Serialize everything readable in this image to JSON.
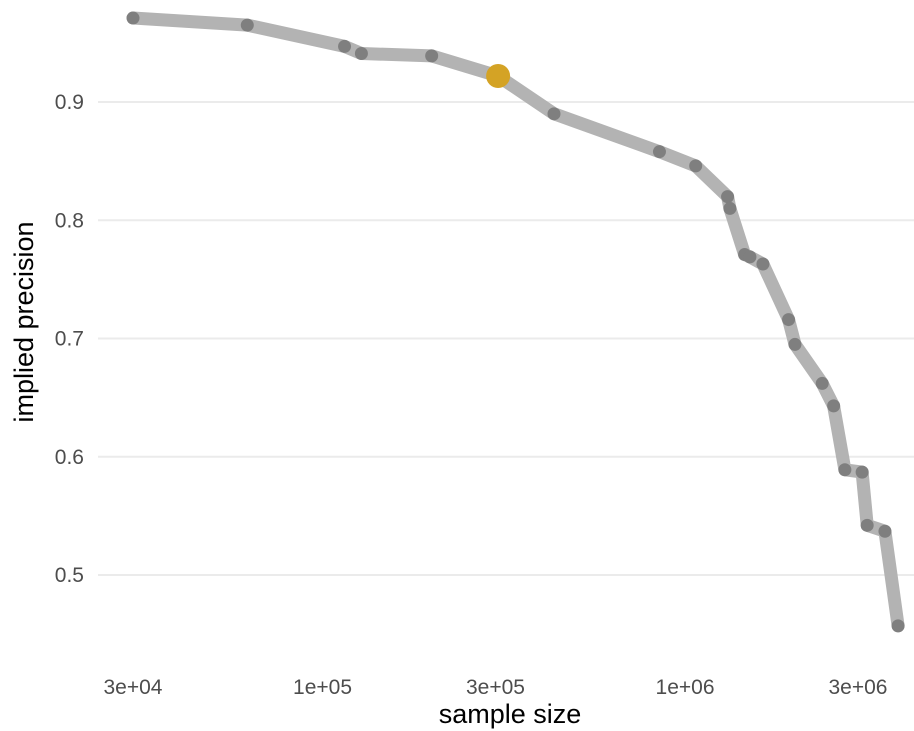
{
  "chart_data": {
    "type": "line",
    "xlabel": "sample size",
    "ylabel": "implied precision",
    "x_scale": "log10",
    "xlim": [
      25000,
      3500000
    ],
    "ylim": [
      0.44,
      0.98
    ],
    "x_ticks": [
      {
        "value": 30000,
        "label": "3e+04"
      },
      {
        "value": 100000,
        "label": "1e+05"
      },
      {
        "value": 300000,
        "label": "3e+05"
      },
      {
        "value": 1000000,
        "label": "1e+06"
      },
      {
        "value": 3000000,
        "label": "3e+06"
      }
    ],
    "y_ticks": [
      {
        "value": 0.5,
        "label": "0.5"
      },
      {
        "value": 0.6,
        "label": "0.6"
      },
      {
        "value": 0.7,
        "label": "0.7"
      },
      {
        "value": 0.8,
        "label": "0.8"
      },
      {
        "value": 0.9,
        "label": "0.9"
      }
    ],
    "grid": true,
    "legend": "none",
    "colors": {
      "line": "#b3b3b3",
      "point": "#7f7f7f",
      "highlight": "#d4a325"
    },
    "series": [
      {
        "points": [
          {
            "x": 30000,
            "y": 0.971
          },
          {
            "x": 62000,
            "y": 0.965
          },
          {
            "x": 115000,
            "y": 0.947
          },
          {
            "x": 128000,
            "y": 0.941
          },
          {
            "x": 200000,
            "y": 0.939
          },
          {
            "x": 305000,
            "y": 0.922
          },
          {
            "x": 435000,
            "y": 0.89
          },
          {
            "x": 850000,
            "y": 0.858
          },
          {
            "x": 1070000,
            "y": 0.846
          },
          {
            "x": 1310000,
            "y": 0.82
          },
          {
            "x": 1330000,
            "y": 0.81
          },
          {
            "x": 1460000,
            "y": 0.771
          },
          {
            "x": 1510000,
            "y": 0.769
          },
          {
            "x": 1640000,
            "y": 0.763
          },
          {
            "x": 1930000,
            "y": 0.716
          },
          {
            "x": 2010000,
            "y": 0.695
          },
          {
            "x": 2390000,
            "y": 0.662
          },
          {
            "x": 2570000,
            "y": 0.643
          },
          {
            "x": 2760000,
            "y": 0.589
          },
          {
            "x": 3080000,
            "y": 0.587
          },
          {
            "x": 3180000,
            "y": 0.542
          },
          {
            "x": 3560000,
            "y": 0.537
          },
          {
            "x": 3870000,
            "y": 0.457
          }
        ],
        "highlight_x": 305000
      }
    ]
  }
}
